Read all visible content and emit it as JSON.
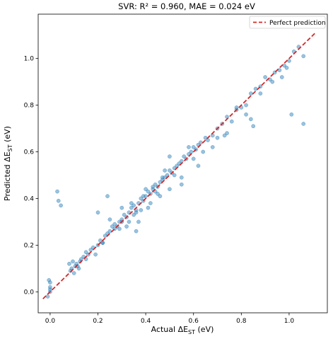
{
  "chart_data": {
    "type": "scatter",
    "title": "SVR: R² = 0.960, MAE = 0.024 eV",
    "xlabel_prefix": "Actual ΔE",
    "xlabel_sub": "ST",
    "xlabel_suffix": " (eV)",
    "ylabel_prefix": "Predicted ΔE",
    "ylabel_sub": "ST",
    "ylabel_suffix": " (eV)",
    "xlim": [
      -0.05,
      1.16
    ],
    "ylim": [
      -0.09,
      1.19
    ],
    "xticks": [
      0.0,
      0.2,
      0.4,
      0.6,
      0.8,
      1.0
    ],
    "xtick_labels": [
      "0.0",
      "0.2",
      "0.4",
      "0.6",
      "0.8",
      "1.0"
    ],
    "yticks": [
      0.0,
      0.2,
      0.4,
      0.6,
      0.8,
      1.0
    ],
    "ytick_labels": [
      "0.0",
      "0.2",
      "0.4",
      "0.6",
      "0.8",
      "1.0"
    ],
    "grid": false,
    "legend": {
      "placement": "top-right",
      "entries": [
        {
          "label": "Perfect prediction",
          "color": "#d62728",
          "style": "dashed"
        }
      ]
    },
    "reference_line": {
      "name": "Perfect prediction",
      "x": [
        -0.03,
        1.11
      ],
      "y": [
        -0.03,
        1.11
      ],
      "color": "#d62728"
    },
    "point_color": "#1f77b4",
    "point_opacity": 0.45,
    "series": [
      {
        "x": [
          -0.01,
          0.0,
          0.0,
          0.0,
          -0.005,
          0.0,
          0.03,
          0.035,
          0.045,
          0.08,
          0.085,
          0.09,
          0.095,
          0.1,
          0.105,
          0.11,
          0.115,
          0.12,
          0.125,
          0.13,
          0.14,
          0.15,
          0.16,
          0.17,
          0.18,
          0.2,
          0.21,
          0.22,
          0.23,
          0.24,
          0.25,
          0.26,
          0.27,
          0.28,
          0.29,
          0.3,
          0.31,
          0.32,
          0.33,
          0.34,
          0.35,
          0.36,
          0.37,
          0.38,
          0.39,
          0.4,
          0.41,
          0.42,
          0.43,
          0.44,
          0.45,
          0.46,
          0.47,
          0.48,
          0.49,
          0.5,
          0.51,
          0.52,
          0.53,
          0.54,
          0.55,
          0.56,
          0.57,
          0.58,
          0.59,
          0.6,
          0.61,
          0.62,
          0.63,
          0.65,
          0.66,
          0.68,
          0.7,
          0.72,
          0.74,
          0.76,
          0.78,
          0.8,
          0.82,
          0.84,
          0.86,
          0.88,
          0.9,
          0.92,
          0.94,
          0.96,
          0.98,
          1.0,
          1.02,
          1.04,
          1.06,
          1.01,
          1.06,
          0.24,
          0.33,
          0.36,
          0.5,
          0.55,
          0.62,
          0.68,
          0.73,
          0.74,
          0.84,
          0.85,
          0.2,
          0.25,
          0.3,
          0.3,
          0.32,
          0.35,
          0.37,
          0.38,
          0.4,
          0.42,
          0.41,
          0.44,
          0.45,
          0.46,
          0.48,
          0.5,
          0.52,
          0.55,
          0.58,
          0.6,
          0.64,
          0.7,
          0.78,
          0.82,
          0.88,
          0.93,
          0.97,
          0.99,
          0.34,
          0.36,
          0.39,
          0.43,
          0.47,
          0.29,
          0.27,
          0.15,
          0.19,
          0.22
        ],
        "y": [
          -0.02,
          0.0,
          0.02,
          0.04,
          0.05,
          0.01,
          0.43,
          0.39,
          0.37,
          0.12,
          0.09,
          0.1,
          0.13,
          0.08,
          0.11,
          0.12,
          0.11,
          0.1,
          0.13,
          0.14,
          0.15,
          0.17,
          0.16,
          0.18,
          0.19,
          0.2,
          0.22,
          0.21,
          0.24,
          0.25,
          0.26,
          0.28,
          0.27,
          0.28,
          0.3,
          0.31,
          0.33,
          0.32,
          0.34,
          0.36,
          0.37,
          0.35,
          0.38,
          0.4,
          0.39,
          0.41,
          0.43,
          0.42,
          0.44,
          0.43,
          0.45,
          0.47,
          0.48,
          0.49,
          0.5,
          0.52,
          0.51,
          0.53,
          0.54,
          0.55,
          0.56,
          0.58,
          0.57,
          0.59,
          0.6,
          0.62,
          0.61,
          0.63,
          0.64,
          0.66,
          0.65,
          0.67,
          0.7,
          0.72,
          0.75,
          0.73,
          0.78,
          0.79,
          0.8,
          0.85,
          0.87,
          0.88,
          0.92,
          0.91,
          0.94,
          0.95,
          0.97,
          0.99,
          1.03,
          1.05,
          1.01,
          0.76,
          0.72,
          0.41,
          0.3,
          0.26,
          0.58,
          0.46,
          0.54,
          0.62,
          0.67,
          0.68,
          0.74,
          0.71,
          0.34,
          0.31,
          0.36,
          0.3,
          0.28,
          0.33,
          0.3,
          0.35,
          0.44,
          0.38,
          0.36,
          0.46,
          0.42,
          0.41,
          0.52,
          0.44,
          0.5,
          0.49,
          0.62,
          0.57,
          0.6,
          0.66,
          0.79,
          0.76,
          0.85,
          0.9,
          0.92,
          0.96,
          0.38,
          0.34,
          0.41,
          0.45,
          0.49,
          0.27,
          0.29,
          0.14,
          0.16,
          0.21
        ]
      }
    ]
  }
}
